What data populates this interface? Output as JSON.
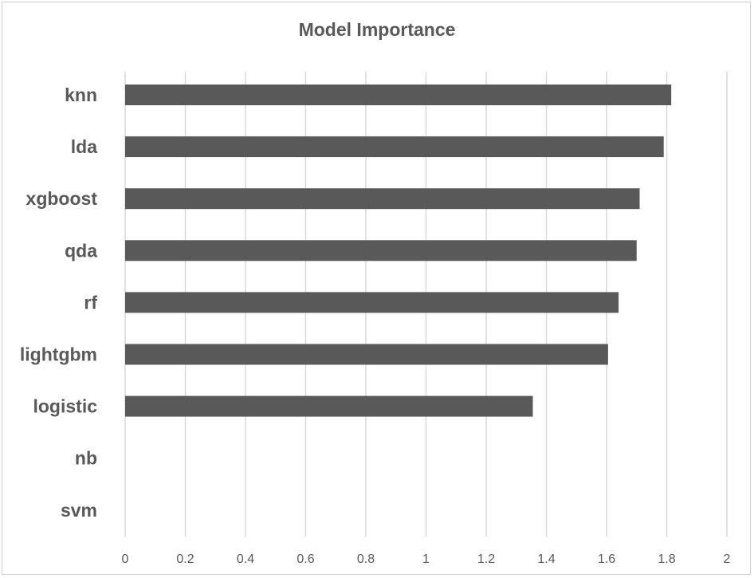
{
  "chart_data": {
    "type": "bar",
    "orientation": "horizontal",
    "title": "Model Importance",
    "xlabel": "",
    "ylabel": "",
    "categories": [
      "knn",
      "lda",
      "xgboost",
      "qda",
      "rf",
      "lightgbm",
      "logistic",
      "nb",
      "svm"
    ],
    "values": [
      1.815,
      1.79,
      1.71,
      1.7,
      1.64,
      1.605,
      1.355,
      0,
      0
    ],
    "xlim": [
      0,
      2
    ],
    "xticks": [
      "0",
      "0.2",
      "0.4",
      "0.6",
      "0.8",
      "1",
      "1.2",
      "1.4",
      "1.6",
      "1.8",
      "2"
    ],
    "grid": true,
    "bar_color": "#595959",
    "gridline_color": "#d9d9d9",
    "text_color": "#595959"
  }
}
